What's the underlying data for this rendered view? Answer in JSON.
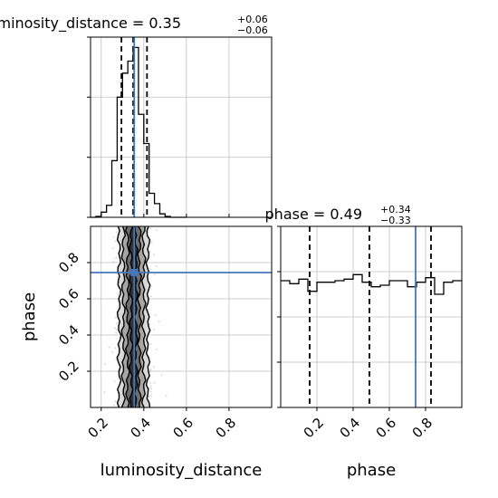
{
  "chart_data": {
    "type": "corner",
    "parameters": [
      "luminosity_distance",
      "phase"
    ],
    "injection": {
      "luminosity_distance": 0.355,
      "phase": 0.745
    },
    "panels": [
      {
        "panel": "luminosity_distance-histogram",
        "type": "histogram",
        "title_main": "luminosity_distance = 0.35",
        "title_sup": "+0.06",
        "title_sub": "−0.06",
        "xlim": [
          0.15,
          1.0
        ],
        "bin_edges": [
          0.15,
          0.175,
          0.2,
          0.225,
          0.25,
          0.275,
          0.3,
          0.325,
          0.35,
          0.375,
          0.4,
          0.425,
          0.45,
          0.475,
          0.5,
          0.525,
          0.55,
          0.575,
          0.6
        ],
        "counts": [
          0.0,
          0.005,
          0.03,
          0.07,
          0.33,
          0.7,
          0.84,
          0.91,
          0.99,
          0.6,
          0.43,
          0.14,
          0.08,
          0.02,
          0.005,
          0.0,
          0.0,
          0.0
        ],
        "ylim": [
          0,
          1.05
        ],
        "quantiles": [
          0.295,
          0.35,
          0.415
        ],
        "truth": 0.355
      },
      {
        "panel": "phase-histogram",
        "type": "histogram",
        "title_main": "phase = 0.49",
        "title_sup": "+0.34",
        "title_sub": "−0.33",
        "xlim": [
          0.0,
          1.0
        ],
        "bin_edges": [
          0.0,
          0.05,
          0.1,
          0.15,
          0.2,
          0.25,
          0.3,
          0.35,
          0.4,
          0.45,
          0.5,
          0.55,
          0.6,
          0.65,
          0.7,
          0.75,
          0.8,
          0.85,
          0.9,
          0.95,
          1.0
        ],
        "counts": [
          0.84,
          0.82,
          0.85,
          0.77,
          0.83,
          0.83,
          0.84,
          0.85,
          0.88,
          0.83,
          0.8,
          0.81,
          0.84,
          0.84,
          0.8,
          0.83,
          0.86,
          0.75,
          0.83,
          0.84
        ],
        "ylim": [
          0,
          1.2
        ],
        "quantiles": [
          0.16,
          0.49,
          0.83
        ],
        "truth": 0.745
      },
      {
        "panel": "phase-vs-luminosity_distance",
        "type": "2d-density",
        "xlim": [
          0.15,
          1.0
        ],
        "ylim": [
          0.0,
          1.0
        ],
        "x_center": 0.352,
        "x_spread": 0.035,
        "contour_half_widths": [
          0.012,
          0.028,
          0.048,
          0.068
        ],
        "truth": [
          0.355,
          0.745
        ]
      }
    ],
    "axes": {
      "xlabel_left": "luminosity_distance",
      "xlabel_right": "phase",
      "ylabel_bottom": "phase",
      "xticks_left": [
        "0.2",
        "0.4",
        "0.6",
        "0.8"
      ],
      "xticks_right": [
        "0.2",
        "0.4",
        "0.6",
        "0.8"
      ],
      "yticks_left": [
        "0.2",
        "0.4",
        "0.6",
        "0.8"
      ]
    },
    "grid": true,
    "colors": {
      "truth": "#4477bb",
      "hist": "#000000",
      "grid": "#bfbfbf",
      "quantile": "#000000",
      "scatter": "#9a9a9a"
    }
  }
}
